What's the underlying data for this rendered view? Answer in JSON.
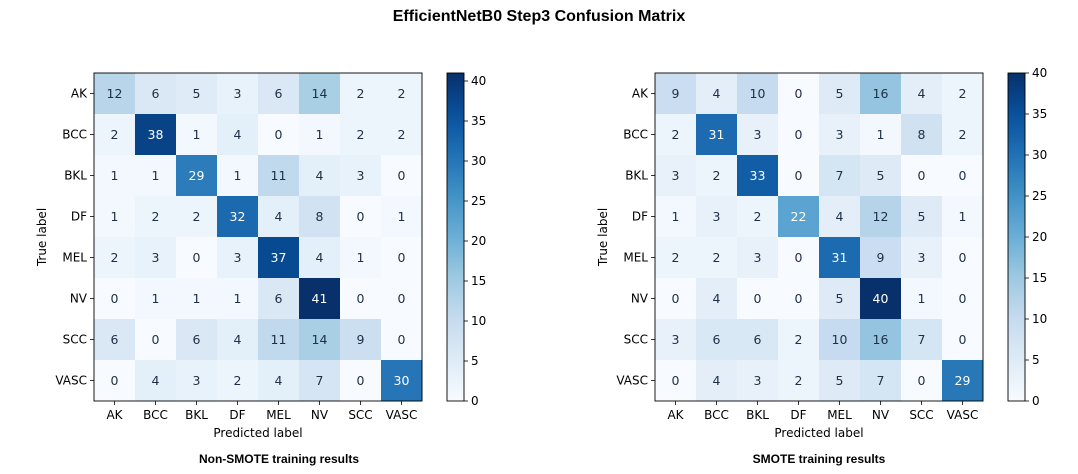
{
  "title": "EfficientNetB0 Step3 Confusion Matrix",
  "chart_data": [
    {
      "type": "heatmap",
      "caption": "Non-SMOTE training results",
      "xlabel": "Predicted label",
      "ylabel": "True label",
      "labels": [
        "AK",
        "BCC",
        "BKL",
        "DF",
        "MEL",
        "NV",
        "SCC",
        "VASC"
      ],
      "matrix": [
        [
          12,
          6,
          5,
          3,
          6,
          14,
          2,
          2
        ],
        [
          2,
          38,
          1,
          4,
          0,
          1,
          2,
          2
        ],
        [
          1,
          1,
          29,
          1,
          11,
          4,
          3,
          0
        ],
        [
          1,
          2,
          2,
          32,
          4,
          8,
          0,
          1
        ],
        [
          2,
          3,
          0,
          3,
          37,
          4,
          1,
          0
        ],
        [
          0,
          1,
          1,
          1,
          6,
          41,
          0,
          0
        ],
        [
          6,
          0,
          6,
          4,
          11,
          14,
          9,
          0
        ],
        [
          0,
          4,
          3,
          2,
          4,
          7,
          0,
          30
        ]
      ],
      "vmin": 0,
      "vmax": 41,
      "colorbar_ticks": [
        0,
        5,
        10,
        15,
        20,
        25,
        30,
        35,
        40
      ],
      "colormap": "Blues"
    },
    {
      "type": "heatmap",
      "caption": "SMOTE training results",
      "xlabel": "Predicted label",
      "ylabel": "True label",
      "labels": [
        "AK",
        "BCC",
        "BKL",
        "DF",
        "MEL",
        "NV",
        "SCC",
        "VASC"
      ],
      "matrix": [
        [
          9,
          4,
          10,
          0,
          5,
          16,
          4,
          2
        ],
        [
          2,
          31,
          3,
          0,
          3,
          1,
          8,
          2
        ],
        [
          3,
          2,
          33,
          0,
          7,
          5,
          0,
          0
        ],
        [
          1,
          3,
          2,
          22,
          4,
          12,
          5,
          1
        ],
        [
          2,
          2,
          3,
          0,
          31,
          9,
          3,
          0
        ],
        [
          0,
          4,
          0,
          0,
          5,
          40,
          1,
          0
        ],
        [
          3,
          6,
          6,
          2,
          10,
          16,
          7,
          0
        ],
        [
          0,
          4,
          3,
          2,
          5,
          7,
          0,
          29
        ]
      ],
      "vmin": 0,
      "vmax": 40,
      "colorbar_ticks": [
        0,
        5,
        10,
        15,
        20,
        25,
        30,
        35,
        40
      ],
      "colormap": "Blues"
    }
  ]
}
